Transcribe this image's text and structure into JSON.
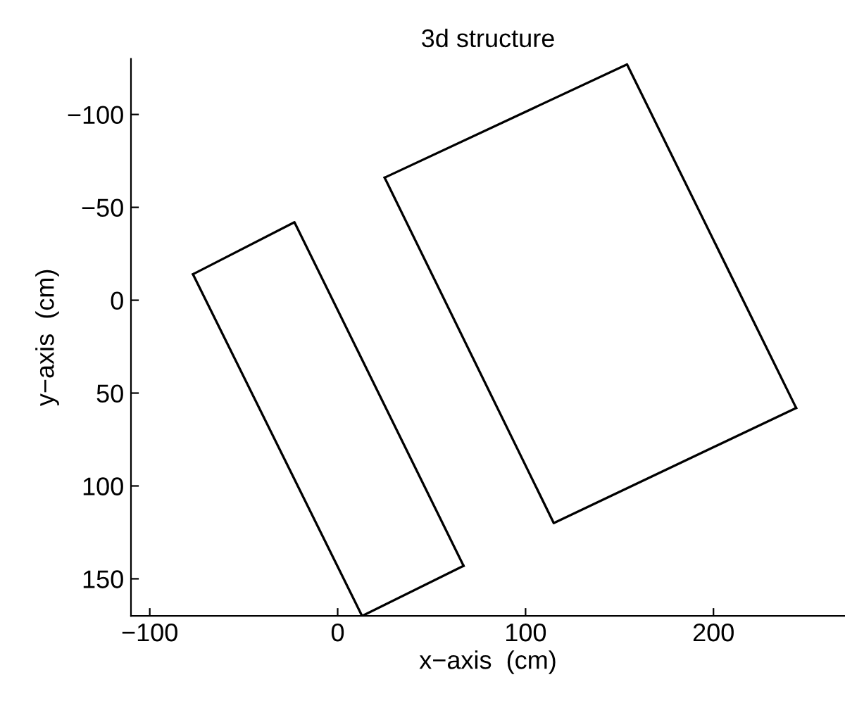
{
  "chart_data": {
    "type": "line",
    "title": "3d structure",
    "xlabel": "x−axis  (cm)",
    "ylabel": "y−axis  (cm)",
    "xlim": [
      -110,
      270
    ],
    "ylim": [
      170,
      -130
    ],
    "xticks": [
      {
        "value": -100,
        "label": "−100"
      },
      0,
      100,
      200
    ],
    "yticks": [
      {
        "value": -100,
        "label": "−100"
      },
      {
        "value": -50,
        "label": "−50"
      },
      0,
      50,
      100,
      150
    ],
    "grid": false,
    "legend": false,
    "marker": "none",
    "line_style": "solid",
    "series": [
      {
        "color": "#000000",
        "x": [
          -77,
          -23,
          67
        ],
        "values": [
          -14,
          -42,
          143
        ]
      },
      {
        "color": "#000000",
        "x": [
          -77,
          13,
          67
        ],
        "values": [
          -14,
          170,
          143
        ]
      },
      {
        "color": "#000000",
        "x": [
          25,
          154,
          244
        ],
        "values": [
          -66,
          -127,
          58
        ]
      },
      {
        "color": "#000000",
        "x": [
          25,
          115,
          244
        ],
        "values": [
          -66,
          120,
          58
        ]
      }
    ]
  }
}
